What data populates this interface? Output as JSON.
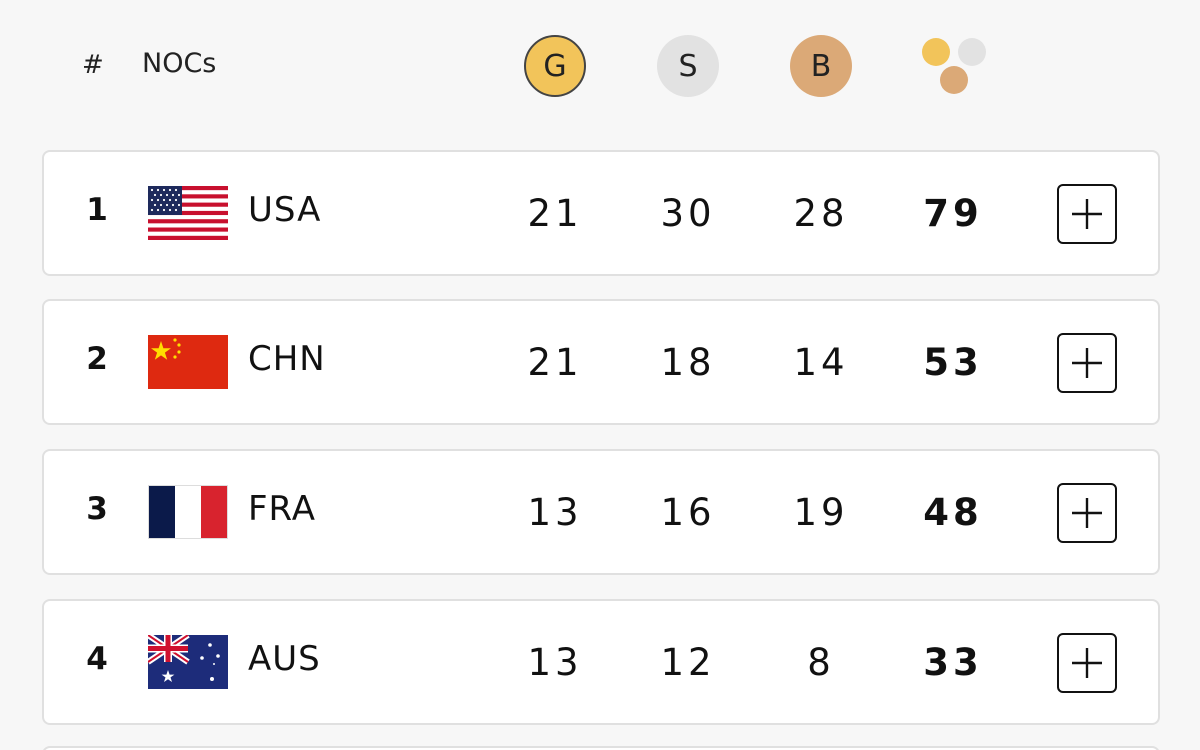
{
  "header": {
    "rank_label": "#",
    "noc_label": "NOCs",
    "gold_label": "G",
    "silver_label": "S",
    "bronze_label": "B",
    "total_icon": "medals-total-icon"
  },
  "colors": {
    "gold": "#f2c45a",
    "silver": "#e2e2e2",
    "bronze": "#dba977"
  },
  "rows": [
    {
      "rank": "1",
      "noc": "USA",
      "flag": "usa-flag",
      "gold": "21",
      "silver": "30",
      "bronze": "28",
      "total": "79"
    },
    {
      "rank": "2",
      "noc": "CHN",
      "flag": "china-flag",
      "gold": "21",
      "silver": "18",
      "bronze": "14",
      "total": "53"
    },
    {
      "rank": "3",
      "noc": "FRA",
      "flag": "france-flag",
      "gold": "13",
      "silver": "16",
      "bronze": "19",
      "total": "48"
    },
    {
      "rank": "4",
      "noc": "AUS",
      "flag": "australia-flag",
      "gold": "13",
      "silver": "12",
      "bronze": "8",
      "total": "33"
    }
  ]
}
